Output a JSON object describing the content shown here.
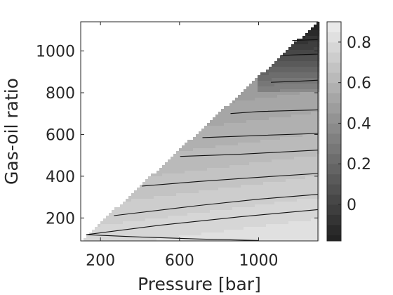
{
  "chart_data": {
    "type": "contourf",
    "title": "",
    "xlabel": "Pressure [bar]",
    "ylabel": "Gas-oil ratio",
    "xlim": [
      100,
      1300
    ],
    "ylim": [
      90,
      1140
    ],
    "xticks": [
      200,
      600,
      1000
    ],
    "yticks": [
      200,
      400,
      600,
      800,
      1000
    ],
    "colorbar": {
      "range": [
        -0.18,
        0.9
      ],
      "ticks": [
        0,
        0.2,
        0.4,
        0.6,
        0.8
      ],
      "tick_labels": [
        "0",
        "0.2",
        "0.4",
        "0.6",
        "0.8"
      ]
    },
    "valid_region": "below the line from (100, 90) to (1300, 1140); no data above it",
    "contour_levels": [
      -0.15,
      -0.1,
      -0.05,
      0,
      0.05,
      0.1,
      0.15,
      0.2,
      0.25,
      0.3,
      0.35,
      0.4,
      0.45,
      0.5,
      0.55,
      0.6,
      0.65,
      0.7,
      0.75,
      0.8,
      0.85
    ],
    "contour_lines": [
      {
        "level": 0.75,
        "points": [
          [
            128,
            120
          ],
          [
            400,
            109
          ],
          [
            700,
            99
          ],
          [
            1000,
            92
          ]
        ]
      },
      {
        "level": 0.7,
        "points": [
          [
            128,
            120
          ],
          [
            500,
            165
          ],
          [
            900,
            205
          ],
          [
            1300,
            240
          ]
        ]
      },
      {
        "level": 0.65,
        "points": [
          [
            268,
            211
          ],
          [
            700,
            260
          ],
          [
            1000,
            290
          ],
          [
            1300,
            313
          ]
        ]
      },
      {
        "level": 0.6,
        "points": [
          [
            410,
            353
          ],
          [
            700,
            375
          ],
          [
            1000,
            395
          ],
          [
            1300,
            413
          ]
        ]
      },
      {
        "level": 0.55,
        "points": [
          [
            603,
            495
          ],
          [
            900,
            505
          ],
          [
            1100,
            515
          ],
          [
            1300,
            525
          ]
        ]
      },
      {
        "level": 0.5,
        "points": [
          [
            716,
            585
          ],
          [
            1000,
            595
          ],
          [
            1300,
            605
          ]
        ]
      },
      {
        "level": 0.45,
        "points": [
          [
            858,
            700
          ],
          [
            1000,
            710
          ],
          [
            1300,
            718
          ]
        ]
      },
      {
        "level": 0.05,
        "points": [
          [
            1062,
            850
          ],
          [
            1200,
            855
          ],
          [
            1300,
            860
          ]
        ]
      },
      {
        "level": -0.05,
        "points": [
          [
            1110,
            978
          ],
          [
            1200,
            982
          ],
          [
            1300,
            985
          ]
        ]
      },
      {
        "level": -0.1,
        "points": [
          [
            1170,
            1050
          ],
          [
            1300,
            1055
          ]
        ]
      }
    ],
    "colormap": "gray"
  }
}
